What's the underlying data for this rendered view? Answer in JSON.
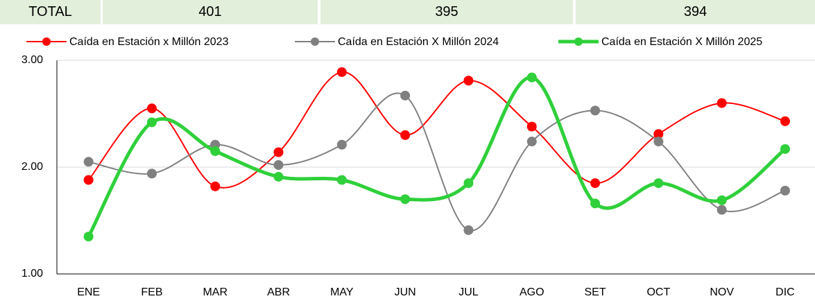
{
  "summary": {
    "label": "TOTAL",
    "values": [
      401,
      395,
      394
    ]
  },
  "chart_data": {
    "type": "line",
    "categories": [
      "ENE",
      "FEB",
      "MAR",
      "ABR",
      "MAY",
      "JUN",
      "JUL",
      "AGO",
      "SET",
      "OCT",
      "NOV",
      "DIC"
    ],
    "series": [
      {
        "name": "Caída en Estación x Millón 2023",
        "color": "#ff0000",
        "values": [
          1.88,
          2.55,
          1.82,
          2.14,
          2.89,
          2.3,
          2.81,
          2.38,
          1.85,
          2.31,
          2.6,
          2.43
        ]
      },
      {
        "name": "Caída en Estación X Millón 2024",
        "color": "#808080",
        "values": [
          2.05,
          1.94,
          2.21,
          2.02,
          2.21,
          2.67,
          1.41,
          2.24,
          2.53,
          2.24,
          1.6,
          1.78
        ]
      },
      {
        "name": "Caída en Estación X Millón 2025",
        "color": "#2fd03a",
        "values": [
          1.35,
          2.42,
          2.15,
          1.91,
          1.88,
          1.7,
          1.85,
          2.84,
          1.66,
          1.85,
          1.69,
          2.17
        ]
      }
    ],
    "ylim": [
      1,
      3
    ],
    "yticks": [
      {
        "value": 1,
        "label": "1.00"
      },
      {
        "value": 2,
        "label": "2.00"
      },
      {
        "value": 3,
        "label": "3.00"
      }
    ],
    "grid": true,
    "smooth": true,
    "legend": "top"
  }
}
